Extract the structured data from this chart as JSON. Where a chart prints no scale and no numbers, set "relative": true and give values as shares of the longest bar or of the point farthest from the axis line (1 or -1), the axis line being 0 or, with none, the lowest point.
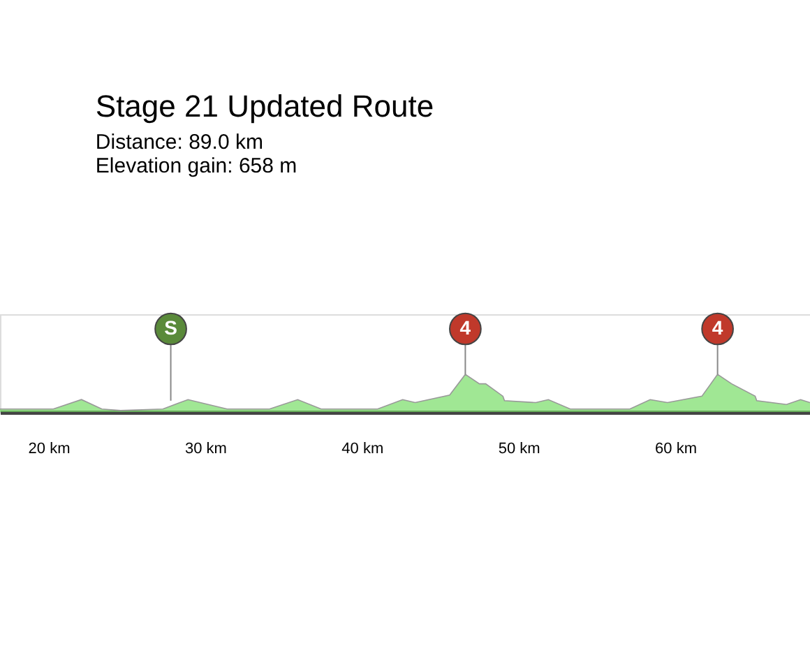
{
  "chart_data": {
    "type": "area",
    "title": "Stage 21 Updated Route",
    "subtitle": [
      "Distance: 89.0 km",
      "Elevation gain: 658 m"
    ],
    "relative": true,
    "color": "#77dd66",
    "x": [
      16.9,
      20.3,
      22.1,
      23.4,
      24.6,
      27.3,
      28.9,
      31.4,
      34.1,
      35.9,
      37.4,
      41.0,
      42.6,
      43.4,
      45.6,
      46.6,
      47.5,
      47.9,
      49.0,
      49.1,
      51.1,
      51.9,
      53.3,
      57.1,
      58.4,
      59.5,
      61.7,
      62.7,
      63.6,
      65.1,
      65.2,
      67.1,
      68.0,
      68.6
    ],
    "values": [
      0.08,
      0.08,
      0.33,
      0.08,
      0.04,
      0.08,
      0.33,
      0.08,
      0.08,
      0.33,
      0.08,
      0.08,
      0.33,
      0.25,
      0.45,
      1.0,
      0.75,
      0.75,
      0.42,
      0.3,
      0.25,
      0.33,
      0.08,
      0.08,
      0.33,
      0.25,
      0.42,
      1.0,
      0.75,
      0.42,
      0.3,
      0.2,
      0.33,
      0.25
    ],
    "xlim": [
      16.9,
      68.6
    ],
    "xticks": [
      {
        "value": 20,
        "label": "20 km"
      },
      {
        "value": 30,
        "label": "30 km"
      },
      {
        "value": 40,
        "label": "40 km"
      },
      {
        "value": 50,
        "label": "50 km"
      },
      {
        "value": 60,
        "label": "60 km"
      }
    ],
    "annotations": [
      {
        "text": "S",
        "x": 27.8,
        "y": 0.3
      },
      {
        "text": "4",
        "x": 46.6,
        "y": 1.0
      },
      {
        "text": "4",
        "x": 62.7,
        "y": 1.0
      }
    ],
    "grid": false
  }
}
